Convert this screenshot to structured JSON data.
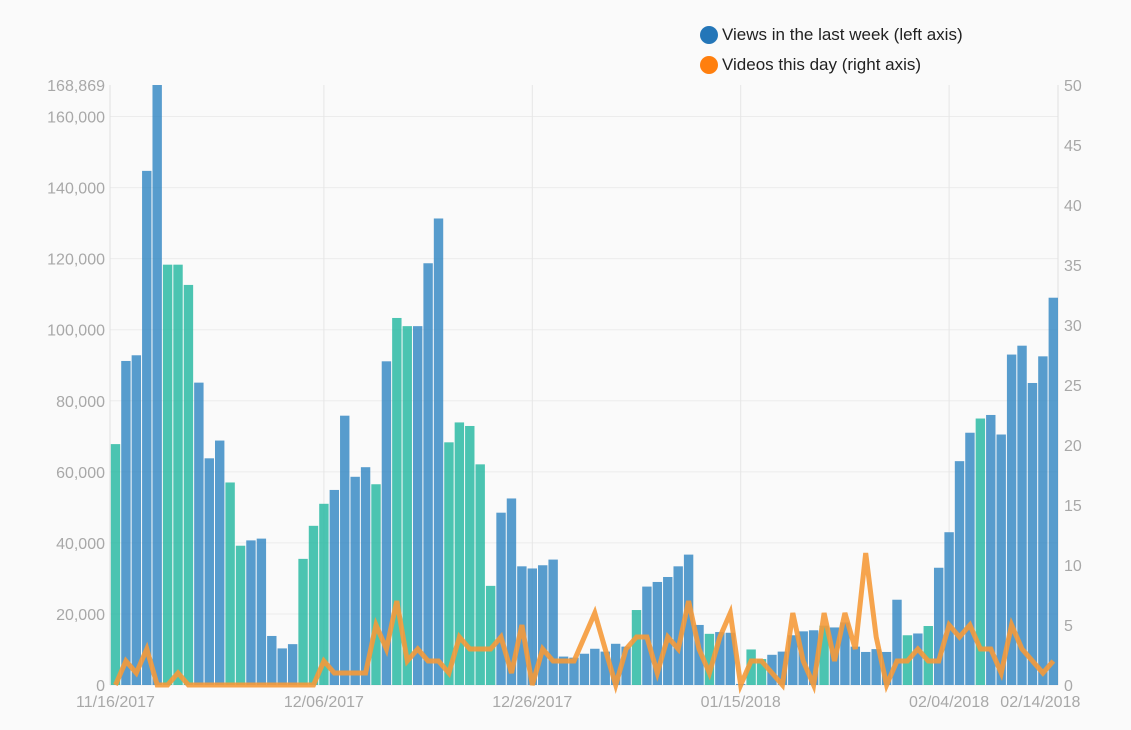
{
  "chart_data": {
    "type": "bar",
    "series": [
      {
        "name": "Views in the last week (left axis)",
        "axis": "left",
        "kind": "bar",
        "colors": {
          "weekday": "#3a8bc4",
          "weekend": "#2bbaa3"
        }
      },
      {
        "name": "Videos this day (right axis)",
        "axis": "right",
        "kind": "line",
        "color": "#f59a3a"
      }
    ],
    "legend_colors": [
      "#2476b8",
      "#ff7f0e"
    ],
    "legend_placement": "top-right",
    "left_axis": {
      "min": 0,
      "max": 168869,
      "ticks": [
        0,
        20000,
        40000,
        60000,
        80000,
        100000,
        120000,
        140000,
        160000,
        168869
      ]
    },
    "right_axis": {
      "min": 0,
      "max": 50,
      "ticks": [
        0,
        5,
        10,
        15,
        20,
        25,
        30,
        35,
        40,
        45,
        50
      ]
    },
    "x_tick_labels": [
      "11/16/2017",
      "12/06/2017",
      "12/26/2017",
      "01/15/2018",
      "02/04/2018",
      "02/14/2018"
    ],
    "x_tick_days": [
      0,
      20,
      40,
      60,
      80,
      90
    ],
    "grid": true,
    "days": [
      {
        "date": "11/16/2017",
        "views": 67800,
        "videos": 0,
        "weekend": true
      },
      {
        "date": "11/17/2017",
        "views": 91200,
        "videos": 2,
        "weekend": false
      },
      {
        "date": "11/18/2017",
        "views": 92800,
        "videos": 1,
        "weekend": false
      },
      {
        "date": "11/19/2017",
        "views": 144700,
        "videos": 3,
        "weekend": false
      },
      {
        "date": "11/20/2017",
        "views": 168869,
        "videos": 0,
        "weekend": false
      },
      {
        "date": "11/21/2017",
        "views": 118300,
        "videos": 0,
        "weekend": true
      },
      {
        "date": "11/22/2017",
        "views": 118300,
        "videos": 1,
        "weekend": true
      },
      {
        "date": "11/23/2017",
        "views": 112600,
        "videos": 0,
        "weekend": true
      },
      {
        "date": "11/24/2017",
        "views": 85100,
        "videos": 0,
        "weekend": false
      },
      {
        "date": "11/25/2017",
        "views": 63800,
        "videos": 0,
        "weekend": false
      },
      {
        "date": "11/26/2017",
        "views": 68800,
        "videos": 0,
        "weekend": false
      },
      {
        "date": "11/27/2017",
        "views": 57000,
        "videos": 0,
        "weekend": true
      },
      {
        "date": "11/28/2017",
        "views": 39200,
        "videos": 0,
        "weekend": true
      },
      {
        "date": "11/29/2017",
        "views": 40700,
        "videos": 0,
        "weekend": false
      },
      {
        "date": "11/30/2017",
        "views": 41200,
        "videos": 0,
        "weekend": false
      },
      {
        "date": "12/01/2017",
        "views": 13800,
        "videos": 0,
        "weekend": false
      },
      {
        "date": "12/02/2017",
        "views": 10300,
        "videos": 0,
        "weekend": false
      },
      {
        "date": "12/03/2017",
        "views": 11500,
        "videos": 0,
        "weekend": false
      },
      {
        "date": "12/04/2017",
        "views": 35500,
        "videos": 0,
        "weekend": true
      },
      {
        "date": "12/05/2017",
        "views": 44800,
        "videos": 0,
        "weekend": true
      },
      {
        "date": "12/06/2017",
        "views": 51000,
        "videos": 2,
        "weekend": true
      },
      {
        "date": "12/07/2017",
        "views": 54900,
        "videos": 1,
        "weekend": false
      },
      {
        "date": "12/08/2017",
        "views": 75800,
        "videos": 1,
        "weekend": false
      },
      {
        "date": "12/09/2017",
        "views": 58600,
        "videos": 1,
        "weekend": false
      },
      {
        "date": "12/10/2017",
        "views": 61300,
        "videos": 1,
        "weekend": false
      },
      {
        "date": "12/11/2017",
        "views": 56500,
        "videos": 5,
        "weekend": true
      },
      {
        "date": "12/12/2017",
        "views": 91100,
        "videos": 3,
        "weekend": false
      },
      {
        "date": "12/13/2017",
        "views": 103300,
        "videos": 7,
        "weekend": true
      },
      {
        "date": "12/14/2017",
        "views": 101000,
        "videos": 2,
        "weekend": true
      },
      {
        "date": "12/15/2017",
        "views": 101000,
        "videos": 3,
        "weekend": false
      },
      {
        "date": "12/16/2017",
        "views": 118700,
        "videos": 2,
        "weekend": false
      },
      {
        "date": "12/17/2017",
        "views": 131300,
        "videos": 2,
        "weekend": false
      },
      {
        "date": "12/18/2017",
        "views": 68300,
        "videos": 1,
        "weekend": true
      },
      {
        "date": "12/19/2017",
        "views": 73900,
        "videos": 4,
        "weekend": true
      },
      {
        "date": "12/20/2017",
        "views": 72900,
        "videos": 3,
        "weekend": true
      },
      {
        "date": "12/21/2017",
        "views": 62100,
        "videos": 3,
        "weekend": true
      },
      {
        "date": "12/22/2017",
        "views": 27900,
        "videos": 3,
        "weekend": true
      },
      {
        "date": "12/23/2017",
        "views": 48500,
        "videos": 4,
        "weekend": false
      },
      {
        "date": "12/24/2017",
        "views": 52500,
        "videos": 1,
        "weekend": false
      },
      {
        "date": "12/25/2017",
        "views": 33400,
        "videos": 5,
        "weekend": false
      },
      {
        "date": "12/26/2017",
        "views": 32800,
        "videos": 0,
        "weekend": false
      },
      {
        "date": "12/27/2017",
        "views": 33700,
        "videos": 3,
        "weekend": false
      },
      {
        "date": "12/28/2017",
        "views": 35300,
        "videos": 2,
        "weekend": false
      },
      {
        "date": "12/29/2017",
        "views": 8000,
        "videos": 2,
        "weekend": false
      },
      {
        "date": "12/30/2017",
        "views": 7700,
        "videos": 2,
        "weekend": false
      },
      {
        "date": "12/31/2017",
        "views": 8800,
        "videos": 4,
        "weekend": false
      },
      {
        "date": "01/01/2018",
        "views": 10200,
        "videos": 6,
        "weekend": false
      },
      {
        "date": "01/02/2018",
        "views": 9400,
        "videos": 3,
        "weekend": false
      },
      {
        "date": "01/03/2018",
        "views": 11600,
        "videos": 0,
        "weekend": false
      },
      {
        "date": "01/04/2018",
        "views": 10800,
        "videos": 3,
        "weekend": false
      },
      {
        "date": "01/05/2018",
        "views": 21100,
        "videos": 4,
        "weekend": true
      },
      {
        "date": "01/06/2018",
        "views": 27700,
        "videos": 4,
        "weekend": false
      },
      {
        "date": "01/07/2018",
        "views": 29000,
        "videos": 1,
        "weekend": false
      },
      {
        "date": "01/08/2018",
        "views": 30400,
        "videos": 4,
        "weekend": false
      },
      {
        "date": "01/09/2018",
        "views": 33400,
        "videos": 3,
        "weekend": false
      },
      {
        "date": "01/10/2018",
        "views": 36700,
        "videos": 7,
        "weekend": false
      },
      {
        "date": "01/11/2018",
        "views": 16900,
        "videos": 3,
        "weekend": false
      },
      {
        "date": "01/12/2018",
        "views": 14400,
        "videos": 1,
        "weekend": true
      },
      {
        "date": "01/13/2018",
        "views": 14900,
        "videos": 4,
        "weekend": false
      },
      {
        "date": "01/14/2018",
        "views": 14700,
        "videos": 6,
        "weekend": false
      },
      {
        "date": "01/15/2018",
        "views": 300,
        "videos": 0,
        "weekend": false
      },
      {
        "date": "01/16/2018",
        "views": 10000,
        "videos": 2,
        "weekend": true
      },
      {
        "date": "01/17/2018",
        "views": 7300,
        "videos": 2,
        "weekend": true
      },
      {
        "date": "01/18/2018",
        "views": 8500,
        "videos": 1,
        "weekend": false
      },
      {
        "date": "01/19/2018",
        "views": 9400,
        "videos": 0,
        "weekend": false
      },
      {
        "date": "01/20/2018",
        "views": 14000,
        "videos": 6,
        "weekend": false
      },
      {
        "date": "01/21/2018",
        "views": 15100,
        "videos": 2,
        "weekend": false
      },
      {
        "date": "01/22/2018",
        "views": 15400,
        "videos": 0,
        "weekend": false
      },
      {
        "date": "01/23/2018",
        "views": 16700,
        "videos": 6,
        "weekend": true
      },
      {
        "date": "01/24/2018",
        "views": 16200,
        "videos": 2,
        "weekend": false
      },
      {
        "date": "01/25/2018",
        "views": 17600,
        "videos": 6,
        "weekend": false
      },
      {
        "date": "01/26/2018",
        "views": 10800,
        "videos": 3,
        "weekend": false
      },
      {
        "date": "01/27/2018",
        "views": 9300,
        "videos": 11,
        "weekend": false
      },
      {
        "date": "01/28/2018",
        "views": 10100,
        "videos": 4,
        "weekend": false
      },
      {
        "date": "01/29/2018",
        "views": 9300,
        "videos": 0,
        "weekend": false
      },
      {
        "date": "01/30/2018",
        "views": 24000,
        "videos": 2,
        "weekend": false
      },
      {
        "date": "01/31/2018",
        "views": 14000,
        "videos": 2,
        "weekend": true
      },
      {
        "date": "02/01/2018",
        "views": 14500,
        "videos": 3,
        "weekend": false
      },
      {
        "date": "02/02/2018",
        "views": 16600,
        "videos": 2,
        "weekend": true
      },
      {
        "date": "02/03/2018",
        "views": 33000,
        "videos": 2,
        "weekend": false
      },
      {
        "date": "02/04/2018",
        "views": 43000,
        "videos": 5,
        "weekend": false
      },
      {
        "date": "02/05/2018",
        "views": 63000,
        "videos": 4,
        "weekend": false
      },
      {
        "date": "02/06/2018",
        "views": 71000,
        "videos": 5,
        "weekend": false
      },
      {
        "date": "02/07/2018",
        "views": 75000,
        "videos": 3,
        "weekend": true
      },
      {
        "date": "02/08/2018",
        "views": 76000,
        "videos": 3,
        "weekend": false
      },
      {
        "date": "02/09/2018",
        "views": 70500,
        "videos": 1,
        "weekend": false
      },
      {
        "date": "02/10/2018",
        "views": 93000,
        "videos": 5,
        "weekend": false
      },
      {
        "date": "02/11/2018",
        "views": 95500,
        "videos": 3,
        "weekend": false
      },
      {
        "date": "02/12/2018",
        "views": 85000,
        "videos": 2,
        "weekend": false
      },
      {
        "date": "02/13/2018",
        "views": 92500,
        "videos": 1,
        "weekend": false
      },
      {
        "date": "02/14/2018",
        "views": 109000,
        "videos": 2,
        "weekend": false
      }
    ]
  }
}
